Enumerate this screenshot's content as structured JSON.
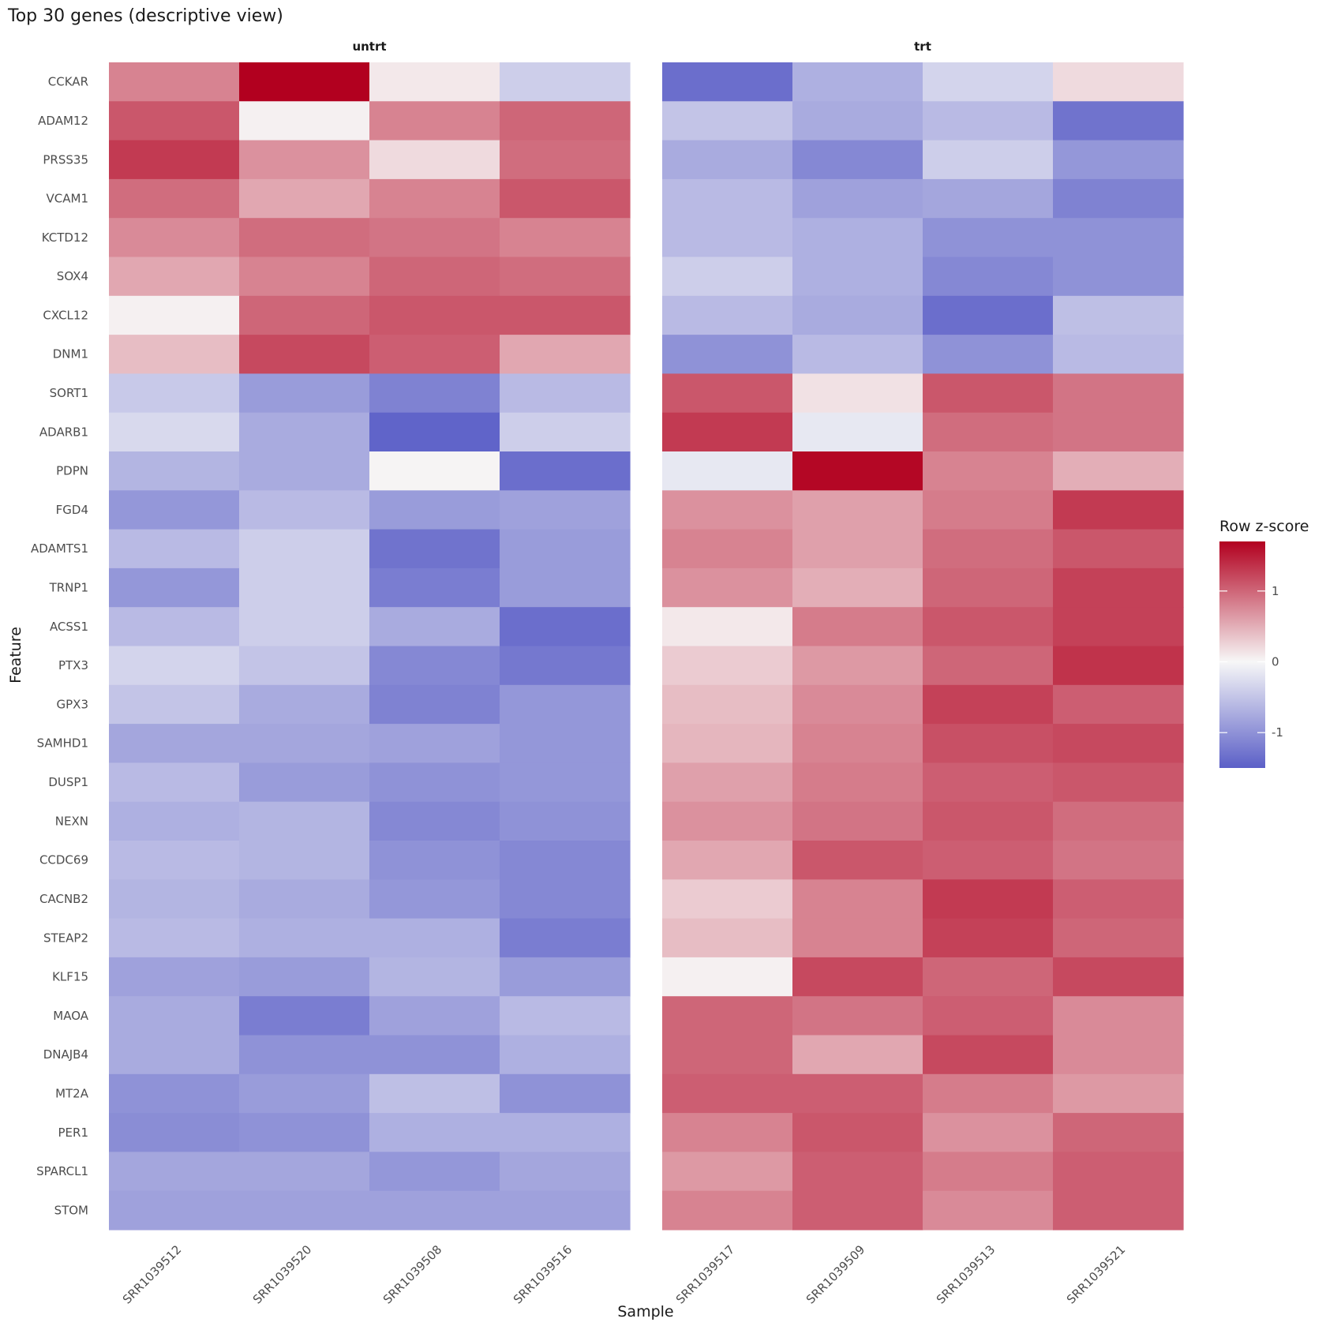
{
  "chart_data": {
    "type": "heatmap",
    "title": "Top 30 genes (descriptive view)",
    "xlabel": "Sample",
    "ylabel": "Feature",
    "legend": {
      "title": "Row z-score",
      "position": "right",
      "ticks": [
        "1",
        "0",
        "-1"
      ],
      "tick_values": [
        1,
        0,
        -1
      ],
      "range": [
        -1.5,
        1.7
      ],
      "colors": {
        "low": "#5b5fc7",
        "mid": "#f7f7f7",
        "high": "#b2001f"
      }
    },
    "grid": false,
    "features": [
      "CCKAR",
      "ADAM12",
      "PRSS35",
      "VCAM1",
      "KCTD12",
      "SOX4",
      "CXCL12",
      "DNM1",
      "SORT1",
      "ADARB1",
      "PDPN",
      "FGD4",
      "ADAMTS1",
      "TRNP1",
      "ACSS1",
      "PTX3",
      "GPX3",
      "SAMHD1",
      "DUSP1",
      "NEXN",
      "CCDC69",
      "CACNB2",
      "STEAP2",
      "KLF15",
      "MAOA",
      "DNAJB4",
      "MT2A",
      "PER1",
      "SPARCL1",
      "STOM"
    ],
    "panels": [
      {
        "name": "untrt",
        "samples": [
          "SRR1039512",
          "SRR1039520",
          "SRR1039508",
          "SRR1039516"
        ],
        "values": [
          [
            0.8,
            1.7,
            0.1,
            -0.4
          ],
          [
            1.1,
            0.05,
            0.8,
            1.0
          ],
          [
            1.3,
            0.7,
            0.2,
            0.95
          ],
          [
            0.95,
            0.55,
            0.8,
            1.1
          ],
          [
            0.75,
            0.95,
            0.9,
            0.8
          ],
          [
            0.55,
            0.8,
            1.0,
            0.95
          ],
          [
            0.05,
            1.0,
            1.1,
            1.1
          ],
          [
            0.4,
            1.2,
            1.05,
            0.55
          ],
          [
            -0.45,
            -0.9,
            -1.15,
            -0.6
          ],
          [
            -0.3,
            -0.75,
            -1.45,
            -0.4
          ],
          [
            -0.65,
            -0.75,
            0.02,
            -1.35
          ],
          [
            -0.95,
            -0.6,
            -0.9,
            -0.85
          ],
          [
            -0.6,
            -0.4,
            -1.3,
            -0.9
          ],
          [
            -0.95,
            -0.4,
            -1.2,
            -0.9
          ],
          [
            -0.6,
            -0.4,
            -0.75,
            -1.35
          ],
          [
            -0.35,
            -0.5,
            -1.1,
            -1.25
          ],
          [
            -0.5,
            -0.75,
            -1.15,
            -0.95
          ],
          [
            -0.8,
            -0.8,
            -0.85,
            -0.95
          ],
          [
            -0.6,
            -0.9,
            -1.0,
            -0.95
          ],
          [
            -0.7,
            -0.65,
            -1.1,
            -1.0
          ],
          [
            -0.6,
            -0.65,
            -1.0,
            -1.1
          ],
          [
            -0.65,
            -0.75,
            -0.95,
            -1.1
          ],
          [
            -0.6,
            -0.7,
            -0.7,
            -1.2
          ],
          [
            -0.85,
            -0.9,
            -0.65,
            -0.9
          ],
          [
            -0.75,
            -1.2,
            -0.85,
            -0.6
          ],
          [
            -0.75,
            -1.0,
            -1.0,
            -0.7
          ],
          [
            -1.0,
            -0.9,
            -0.55,
            -1.0
          ],
          [
            -1.05,
            -1.0,
            -0.7,
            -0.7
          ],
          [
            -0.8,
            -0.8,
            -0.95,
            -0.8
          ],
          [
            -0.85,
            -0.85,
            -0.85,
            -0.85
          ]
        ]
      },
      {
        "name": "trt",
        "samples": [
          "SRR1039517",
          "SRR1039509",
          "SRR1039513",
          "SRR1039521"
        ],
        "values": [
          [
            -1.35,
            -0.7,
            -0.35,
            0.2
          ],
          [
            -0.5,
            -0.75,
            -0.6,
            -1.3
          ],
          [
            -0.75,
            -1.1,
            -0.4,
            -0.95
          ],
          [
            -0.6,
            -0.85,
            -0.8,
            -1.15
          ],
          [
            -0.6,
            -0.7,
            -1.0,
            -1.0
          ],
          [
            -0.4,
            -0.7,
            -1.1,
            -1.0
          ],
          [
            -0.6,
            -0.75,
            -1.35,
            -0.55
          ],
          [
            -1.0,
            -0.6,
            -1.0,
            -0.6
          ],
          [
            1.1,
            0.15,
            1.1,
            0.9
          ],
          [
            1.3,
            -0.15,
            0.95,
            0.9
          ],
          [
            -0.15,
            1.65,
            0.8,
            0.5
          ],
          [
            0.7,
            0.6,
            0.85,
            1.3
          ],
          [
            0.8,
            0.6,
            0.95,
            1.1
          ],
          [
            0.7,
            0.5,
            1.0,
            1.25
          ],
          [
            0.1,
            0.85,
            1.1,
            1.25
          ],
          [
            0.3,
            0.65,
            1.0,
            1.35
          ],
          [
            0.4,
            0.75,
            1.25,
            1.05
          ],
          [
            0.45,
            0.8,
            1.15,
            1.2
          ],
          [
            0.6,
            0.85,
            1.05,
            1.1
          ],
          [
            0.7,
            0.9,
            1.1,
            0.95
          ],
          [
            0.55,
            1.1,
            1.05,
            0.9
          ],
          [
            0.3,
            0.8,
            1.3,
            1.05
          ],
          [
            0.4,
            0.8,
            1.25,
            1.0
          ],
          [
            0.05,
            1.2,
            1.0,
            1.2
          ],
          [
            1.0,
            0.9,
            1.05,
            0.75
          ],
          [
            1.0,
            0.55,
            1.2,
            0.75
          ],
          [
            1.05,
            1.05,
            0.85,
            0.65
          ],
          [
            0.8,
            1.1,
            0.7,
            1.0
          ],
          [
            0.65,
            1.05,
            0.85,
            1.05
          ],
          [
            0.8,
            1.05,
            0.75,
            1.05
          ]
        ]
      }
    ]
  }
}
